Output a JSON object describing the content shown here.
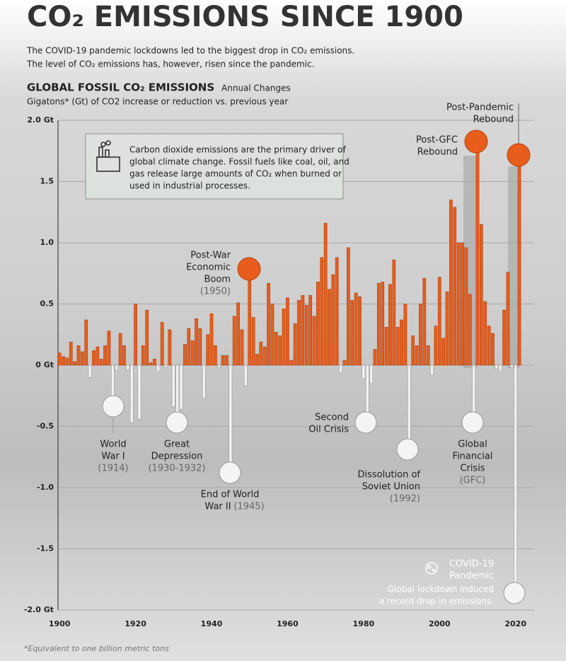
{
  "chart_data": {
    "type": "bar",
    "title": "CO₂ EMISSIONS SINCE 1900",
    "subtitle": [
      "The COVID-19 pandemic lockdowns led to the biggest drop in CO₂ emissions.",
      "The level of CO₂ emissions has, however, risen since the pandemic."
    ],
    "chart_title": "GLOBAL FOSSIL CO₂ EMISSIONS",
    "chart_subtitle": "Annual Changes",
    "y_label": "Gigatons* (Gt) of CO2 increase or reduction vs. previous year",
    "footnote": "*Equivalent to one billion metric tons",
    "info": [
      "Carbon dioxide emissions are the primary driver of",
      "global climate change. Fossil fuels like coal, oil, and",
      "gas release large amounts of CO₂ when burned or",
      "used in industrial processes."
    ],
    "color": "#e85d1c",
    "negative_color": "#f2f2f2",
    "grid": true,
    "xlim": [
      1899.6,
      2024.9
    ],
    "xticks": [
      1900,
      1920,
      1940,
      1960,
      1980,
      2000,
      2020
    ],
    "ylim": [
      -2,
      2
    ],
    "yticks": [
      {
        "value": 2,
        "label": "2.0 Gt"
      },
      1.5,
      {
        "value": 1,
        "label": "1.0"
      },
      0.5,
      {
        "value": 0,
        "label": "0 Gt"
      },
      -0.5,
      {
        "value": -1,
        "label": "-1.0"
      },
      -1.5,
      {
        "value": -2,
        "label": "-2.0 Gt"
      }
    ],
    "x": [
      1900,
      1901,
      1902,
      1903,
      1904,
      1905,
      1906,
      1907,
      1908,
      1909,
      1910,
      1911,
      1912,
      1913,
      1914,
      1915,
      1916,
      1917,
      1918,
      1919,
      1920,
      1921,
      1922,
      1923,
      1924,
      1925,
      1926,
      1927,
      1928,
      1929,
      1930,
      1931,
      1932,
      1933,
      1934,
      1935,
      1936,
      1937,
      1938,
      1939,
      1940,
      1941,
      1942,
      1943,
      1944,
      1945,
      1946,
      1947,
      1948,
      1949,
      1950,
      1951,
      1952,
      1953,
      1954,
      1955,
      1956,
      1957,
      1958,
      1959,
      1960,
      1961,
      1962,
      1963,
      1964,
      1965,
      1966,
      1967,
      1968,
      1969,
      1970,
      1971,
      1972,
      1973,
      1974,
      1975,
      1976,
      1977,
      1978,
      1979,
      1980,
      1981,
      1982,
      1983,
      1984,
      1985,
      1986,
      1987,
      1988,
      1989,
      1990,
      1991,
      1992,
      1993,
      1994,
      1995,
      1996,
      1997,
      1998,
      1999,
      2000,
      2001,
      2002,
      2003,
      2004,
      2005,
      2006,
      2007,
      2008,
      2009,
      2010,
      2011,
      2012,
      2013,
      2014,
      2015,
      2016,
      2017,
      2018,
      2019,
      2020,
      2021
    ],
    "values": [
      0.1,
      0.07,
      0.06,
      0.19,
      0.03,
      0.16,
      0.11,
      0.37,
      -0.1,
      0.12,
      0.15,
      0.05,
      0.16,
      0.28,
      -0.33,
      -0.04,
      0.26,
      0.16,
      -0.04,
      -0.47,
      0.5,
      -0.44,
      0.16,
      0.45,
      0.02,
      0.05,
      -0.05,
      0.35,
      -0.02,
      0.29,
      -0.34,
      -0.45,
      -0.36,
      0.17,
      0.3,
      0.2,
      0.38,
      0.3,
      -0.27,
      0.25,
      0.42,
      0.16,
      -0.02,
      0.08,
      0.08,
      -0.88,
      0.4,
      0.51,
      0.29,
      -0.17,
      0.78,
      0.39,
      0.09,
      0.19,
      0.15,
      0.67,
      0.5,
      0.27,
      0.24,
      0.46,
      0.55,
      0.04,
      0.34,
      0.53,
      0.57,
      0.49,
      0.57,
      0.4,
      0.68,
      0.88,
      1.16,
      0.62,
      0.74,
      0.88,
      -0.06,
      0.04,
      0.96,
      0.53,
      0.59,
      0.56,
      -0.11,
      -0.47,
      -0.15,
      0.13,
      0.67,
      0.68,
      0.31,
      0.66,
      0.86,
      0.31,
      0.37,
      0.5,
      -0.68,
      0.24,
      0.16,
      0.5,
      0.71,
      0.16,
      -0.08,
      0.32,
      0.72,
      0.22,
      0.6,
      1.35,
      1.29,
      1.0,
      1.0,
      0.96,
      0.58,
      -0.46,
      1.78,
      1.15,
      0.52,
      0.32,
      0.26,
      -0.03,
      -0.05,
      0.45,
      0.76,
      -0.02,
      -1.86,
      1.7
    ],
    "annotations": [
      {
        "lines": [
          "World",
          "War I"
        ],
        "date": "(1914)"
      },
      {
        "lines": [
          "Great",
          "Depression"
        ],
        "date": "(1930-1932)"
      },
      {
        "lines": [
          "End of World",
          "War II"
        ],
        "date": "(1945)"
      },
      {
        "lines": [
          "Post-War",
          "Economic",
          "Boom"
        ],
        "date": "(1950)"
      },
      {
        "lines": [
          "Second",
          "Oil Crisis"
        ]
      },
      {
        "lines": [
          "Dissolution of",
          "Soviet Union"
        ],
        "date": "(1992)"
      },
      {
        "lines": [
          "Global",
          "Financial",
          "Crisis"
        ],
        "date": "(GFC)"
      },
      {
        "lines": [
          "Post-GFC",
          "Rebound"
        ]
      },
      {
        "lines": [
          "Post-Pandemic",
          "Rebound"
        ]
      },
      {
        "lines": [
          "COVID-19",
          "Pandemic"
        ],
        "note": [
          "Global lockdown induced",
          "a record drop in emissions."
        ]
      }
    ]
  }
}
